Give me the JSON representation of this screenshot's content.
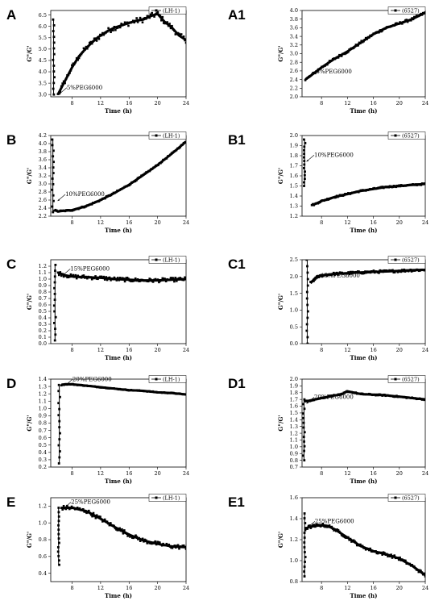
{
  "chart_data": [
    {
      "id": "A",
      "panel_label": "A",
      "type": "line",
      "xlabel": "Time (h)",
      "ylabel": "G\"/G'",
      "legend": "(LH-1)",
      "legend_position": "top-right",
      "annotation": "5%PEG6000",
      "annotation_point": [
        6.0,
        3.05
      ],
      "xlim": [
        5,
        24
      ],
      "ylim": [
        2.9,
        6.7
      ],
      "xticks": [
        8,
        12,
        16,
        20,
        24
      ],
      "yticks": [
        3.0,
        3.5,
        4.0,
        4.5,
        5.0,
        5.5,
        6.0,
        6.5
      ],
      "ytick_labels": [
        "3.0",
        "3.5",
        "4.0",
        "4.5",
        "5.0",
        "5.5",
        "6.0",
        "6.5"
      ],
      "spike": {
        "x": 5.4,
        "y": [
          3.0,
          6.3
        ]
      },
      "x": [
        6,
        7,
        8,
        9,
        10,
        11,
        12,
        13,
        14,
        15,
        16,
        17,
        18,
        19,
        20,
        21,
        22,
        23,
        24
      ],
      "y": [
        3.0,
        3.6,
        4.2,
        4.7,
        5.05,
        5.35,
        5.6,
        5.8,
        5.95,
        6.05,
        6.15,
        6.25,
        6.3,
        6.45,
        6.55,
        6.2,
        5.95,
        5.6,
        5.4
      ],
      "noise": 0.12
    },
    {
      "id": "A1",
      "panel_label": "A1",
      "type": "line",
      "xlabel": "Time (h)",
      "ylabel": "G\"/G'",
      "legend": "(6527)",
      "legend_position": "top-right",
      "annotation": "5%PEG6000",
      "annotation_point": [
        5.8,
        2.45
      ],
      "xlim": [
        5,
        24
      ],
      "ylim": [
        2.0,
        4.0
      ],
      "xticks": [
        8,
        12,
        16,
        20,
        24
      ],
      "yticks": [
        2.0,
        2.2,
        2.4,
        2.6,
        2.8,
        3.0,
        3.2,
        3.4,
        3.6,
        3.8,
        4.0
      ],
      "ytick_labels": [
        "2.0",
        "2.2",
        "2.4",
        "2.6",
        "2.8",
        "3.0",
        "3.2",
        "3.4",
        "3.6",
        "3.8",
        "4.0"
      ],
      "x": [
        5.5,
        6,
        8,
        10,
        12,
        14,
        16,
        18,
        20,
        22,
        24
      ],
      "y": [
        2.4,
        2.45,
        2.68,
        2.88,
        3.05,
        3.25,
        3.45,
        3.6,
        3.7,
        3.8,
        3.95
      ],
      "noise": 0.03
    },
    {
      "id": "B",
      "panel_label": "B",
      "type": "line",
      "xlabel": "Time (h)",
      "ylabel": "G\"/G'",
      "legend": "(LH-1)",
      "legend_position": "top-right",
      "annotation": "10%PEG6000",
      "annotation_point": [
        5.8,
        2.6
      ],
      "xlim": [
        5,
        24
      ],
      "ylim": [
        2.2,
        4.2
      ],
      "xticks": [
        8,
        12,
        16,
        20,
        24
      ],
      "yticks": [
        2.2,
        2.4,
        2.6,
        2.8,
        3.0,
        3.2,
        3.4,
        3.6,
        3.8,
        4.0,
        4.2
      ],
      "ytick_labels": [
        "2.2",
        "2.4",
        "2.6",
        "2.8",
        "3.0",
        "3.2",
        "3.4",
        "3.6",
        "3.8",
        "4.0",
        "4.2"
      ],
      "spike": {
        "x": 5.3,
        "y": [
          2.3,
          4.1
        ]
      },
      "x": [
        5.5,
        6,
        8,
        10,
        12,
        14,
        16,
        18,
        20,
        22,
        24
      ],
      "y": [
        2.35,
        2.32,
        2.35,
        2.45,
        2.6,
        2.78,
        2.98,
        3.22,
        3.47,
        3.75,
        4.05
      ],
      "noise": 0.02
    },
    {
      "id": "B1",
      "panel_label": "B1",
      "type": "line",
      "xlabel": "Time (h)",
      "ylabel": "G\"/G'",
      "legend": "(6527)",
      "legend_position": "top-right",
      "annotation": "10%PEG6000",
      "annotation_point": [
        5.5,
        1.75
      ],
      "xlim": [
        5,
        24
      ],
      "ylim": [
        1.2,
        2.0
      ],
      "xticks": [
        8,
        12,
        16,
        20,
        24
      ],
      "yticks": [
        1.2,
        1.3,
        1.4,
        1.5,
        1.6,
        1.7,
        1.8,
        1.9,
        2.0
      ],
      "ytick_labels": [
        "1.2",
        "1.3",
        "1.4",
        "1.5",
        "1.6",
        "1.7",
        "1.8",
        "1.9",
        "2.0"
      ],
      "spike": {
        "x": 5.4,
        "y": [
          1.5,
          1.96
        ]
      },
      "x": [
        6.5,
        7,
        8,
        10,
        12,
        14,
        16,
        18,
        20,
        22,
        24
      ],
      "y": [
        1.31,
        1.32,
        1.35,
        1.39,
        1.42,
        1.45,
        1.47,
        1.49,
        1.5,
        1.51,
        1.52
      ],
      "noise": 0.008
    },
    {
      "id": "C",
      "panel_label": "C",
      "type": "line",
      "xlabel": "Time (h)",
      "ylabel": "G\"/G'",
      "legend": "(LH-1)",
      "legend_position": "top-right",
      "annotation": "15%PEG6000",
      "annotation_point": [
        6.5,
        1.07
      ],
      "xlim": [
        5,
        24
      ],
      "ylim": [
        0.0,
        1.3
      ],
      "xticks": [
        8,
        12,
        16,
        20,
        24
      ],
      "yticks": [
        0.0,
        0.1,
        0.2,
        0.3,
        0.4,
        0.5,
        0.6,
        0.7,
        0.8,
        0.9,
        1.0,
        1.1,
        1.2
      ],
      "ytick_labels": [
        "0.0",
        "0.1",
        "0.2",
        "0.3",
        "0.4",
        "0.5",
        "0.6",
        "0.7",
        "0.8",
        "0.9",
        "1.0",
        "1.1",
        "1.2"
      ],
      "spike": {
        "x": 5.6,
        "y": [
          0.05,
          1.22
        ]
      },
      "x": [
        6,
        7,
        8,
        10,
        12,
        14,
        16,
        18,
        20,
        22,
        24
      ],
      "y": [
        1.1,
        1.06,
        1.04,
        1.03,
        1.02,
        1.0,
        0.99,
        0.98,
        0.98,
        0.99,
        1.0
      ],
      "noise": 0.03
    },
    {
      "id": "C1",
      "panel_label": "C1",
      "type": "line",
      "xlabel": "Time (h)",
      "ylabel": "G\"/G'",
      "legend": "(6527)",
      "legend_position": "top-right",
      "annotation": "15%PEG6000",
      "annotation_point": [
        6.5,
        1.85
      ],
      "xlim": [
        5,
        24
      ],
      "ylim": [
        0.0,
        2.5
      ],
      "xticks": [
        8,
        12,
        16,
        20,
        24
      ],
      "yticks": [
        0.0,
        0.5,
        1.0,
        1.5,
        2.0,
        2.5
      ],
      "ytick_labels": [
        "0.0",
        "0.5",
        "1.0",
        "1.5",
        "2.0",
        "2.5"
      ],
      "spike": {
        "x": 5.8,
        "y": [
          0.0,
          2.5
        ]
      },
      "x": [
        6.3,
        7,
        8,
        10,
        12,
        14,
        16,
        18,
        20,
        22,
        24
      ],
      "y": [
        1.8,
        1.95,
        2.03,
        2.08,
        2.1,
        2.12,
        2.14,
        2.15,
        2.17,
        2.19,
        2.2
      ],
      "noise": 0.04
    },
    {
      "id": "D",
      "panel_label": "D",
      "type": "line",
      "xlabel": "Time (h)",
      "ylabel": "G\"/G'",
      "legend": "(LH-1)",
      "legend_position": "top-right",
      "annotation": "20%PEG6000",
      "annotation_point": [
        6.8,
        1.32
      ],
      "xlim": [
        5,
        24
      ],
      "ylim": [
        0.2,
        1.4
      ],
      "xticks": [
        8,
        12,
        16,
        20,
        24
      ],
      "yticks": [
        0.2,
        0.3,
        0.4,
        0.5,
        0.6,
        0.7,
        0.8,
        0.9,
        1.0,
        1.1,
        1.2,
        1.3,
        1.4
      ],
      "ytick_labels": [
        "0.2",
        "0.3",
        "0.4",
        "0.5",
        "0.6",
        "0.7",
        "0.8",
        "0.9",
        "1.0",
        "1.1",
        "1.2",
        "1.3",
        "1.4"
      ],
      "spike": {
        "x": 6.2,
        "y": [
          0.25,
          1.32
        ]
      },
      "x": [
        6.5,
        7,
        8,
        10,
        12,
        14,
        16,
        18,
        20,
        22,
        24
      ],
      "y": [
        1.32,
        1.33,
        1.33,
        1.31,
        1.29,
        1.27,
        1.25,
        1.24,
        1.22,
        1.21,
        1.19
      ],
      "noise": 0.006
    },
    {
      "id": "D1",
      "panel_label": "D1",
      "type": "line",
      "xlabel": "Time (h)",
      "ylabel": "G\"/G'",
      "legend": "(6527)",
      "legend_position": "top-right",
      "annotation": "20%PEG6000",
      "annotation_point": [
        5.5,
        1.65
      ],
      "xlim": [
        5,
        24
      ],
      "ylim": [
        0.7,
        2.0
      ],
      "xticks": [
        8,
        12,
        16,
        20,
        24
      ],
      "yticks": [
        0.7,
        0.8,
        0.9,
        1.0,
        1.1,
        1.2,
        1.3,
        1.4,
        1.5,
        1.6,
        1.7,
        1.8,
        1.9,
        2.0
      ],
      "ytick_labels": [
        "0.7",
        "0.8",
        "0.9",
        "1.0",
        "1.1",
        "1.2",
        "1.3",
        "1.4",
        "1.5",
        "1.6",
        "1.7",
        "1.8",
        "1.9",
        "2.0"
      ],
      "spike": {
        "x": 5.3,
        "y": [
          0.8,
          1.7
        ]
      },
      "x": [
        5.5,
        6,
        7,
        8,
        9,
        10,
        11,
        12,
        13,
        14,
        16,
        18,
        20,
        22,
        24
      ],
      "y": [
        1.67,
        1.68,
        1.7,
        1.72,
        1.74,
        1.76,
        1.77,
        1.82,
        1.8,
        1.78,
        1.77,
        1.76,
        1.74,
        1.72,
        1.7
      ],
      "noise": 0.01
    },
    {
      "id": "E",
      "panel_label": "E",
      "type": "line",
      "xlabel": "Time (h)",
      "ylabel": "G\"/G'",
      "legend": "(LH-1)",
      "legend_position": "top-right",
      "annotation": "25%PEG6000",
      "annotation_point": [
        6.6,
        1.18
      ],
      "xlim": [
        5,
        24
      ],
      "ylim": [
        0.3,
        1.3
      ],
      "xticks": [
        8,
        12,
        16,
        20,
        24
      ],
      "yticks": [
        0.4,
        0.6,
        0.8,
        1.0,
        1.2
      ],
      "ytick_labels": [
        "0.4",
        "0.6",
        "0.8",
        "1.0",
        "1.2"
      ],
      "spike": {
        "x": 6.1,
        "y": [
          0.5,
          1.18
        ]
      },
      "x": [
        6.5,
        8,
        10,
        12,
        14,
        16,
        18,
        20,
        22,
        24
      ],
      "y": [
        1.18,
        1.18,
        1.14,
        1.05,
        0.95,
        0.86,
        0.79,
        0.75,
        0.72,
        0.71
      ],
      "noise": 0.025
    },
    {
      "id": "E1",
      "panel_label": "E1",
      "type": "line",
      "xlabel": "Time (h)",
      "ylabel": "G\"/G'",
      "legend": "(6527)",
      "legend_position": "top-right",
      "annotation": "25%PEG6000",
      "annotation_point": [
        5.6,
        1.32
      ],
      "xlim": [
        5,
        24
      ],
      "ylim": [
        0.8,
        1.6
      ],
      "xticks": [
        8,
        12,
        16,
        20,
        24
      ],
      "yticks": [
        0.8,
        1.0,
        1.2,
        1.4,
        1.6
      ],
      "ytick_labels": [
        "0.8",
        "1.0",
        "1.2",
        "1.4",
        "1.6"
      ],
      "spike": {
        "x": 5.4,
        "y": [
          0.85,
          1.45
        ]
      },
      "x": [
        5.5,
        6,
        7,
        8,
        9,
        10,
        12,
        14,
        16,
        18,
        20,
        22,
        24
      ],
      "y": [
        1.3,
        1.32,
        1.33,
        1.34,
        1.33,
        1.3,
        1.22,
        1.14,
        1.09,
        1.06,
        1.02,
        0.95,
        0.86
      ],
      "noise": 0.015
    }
  ]
}
